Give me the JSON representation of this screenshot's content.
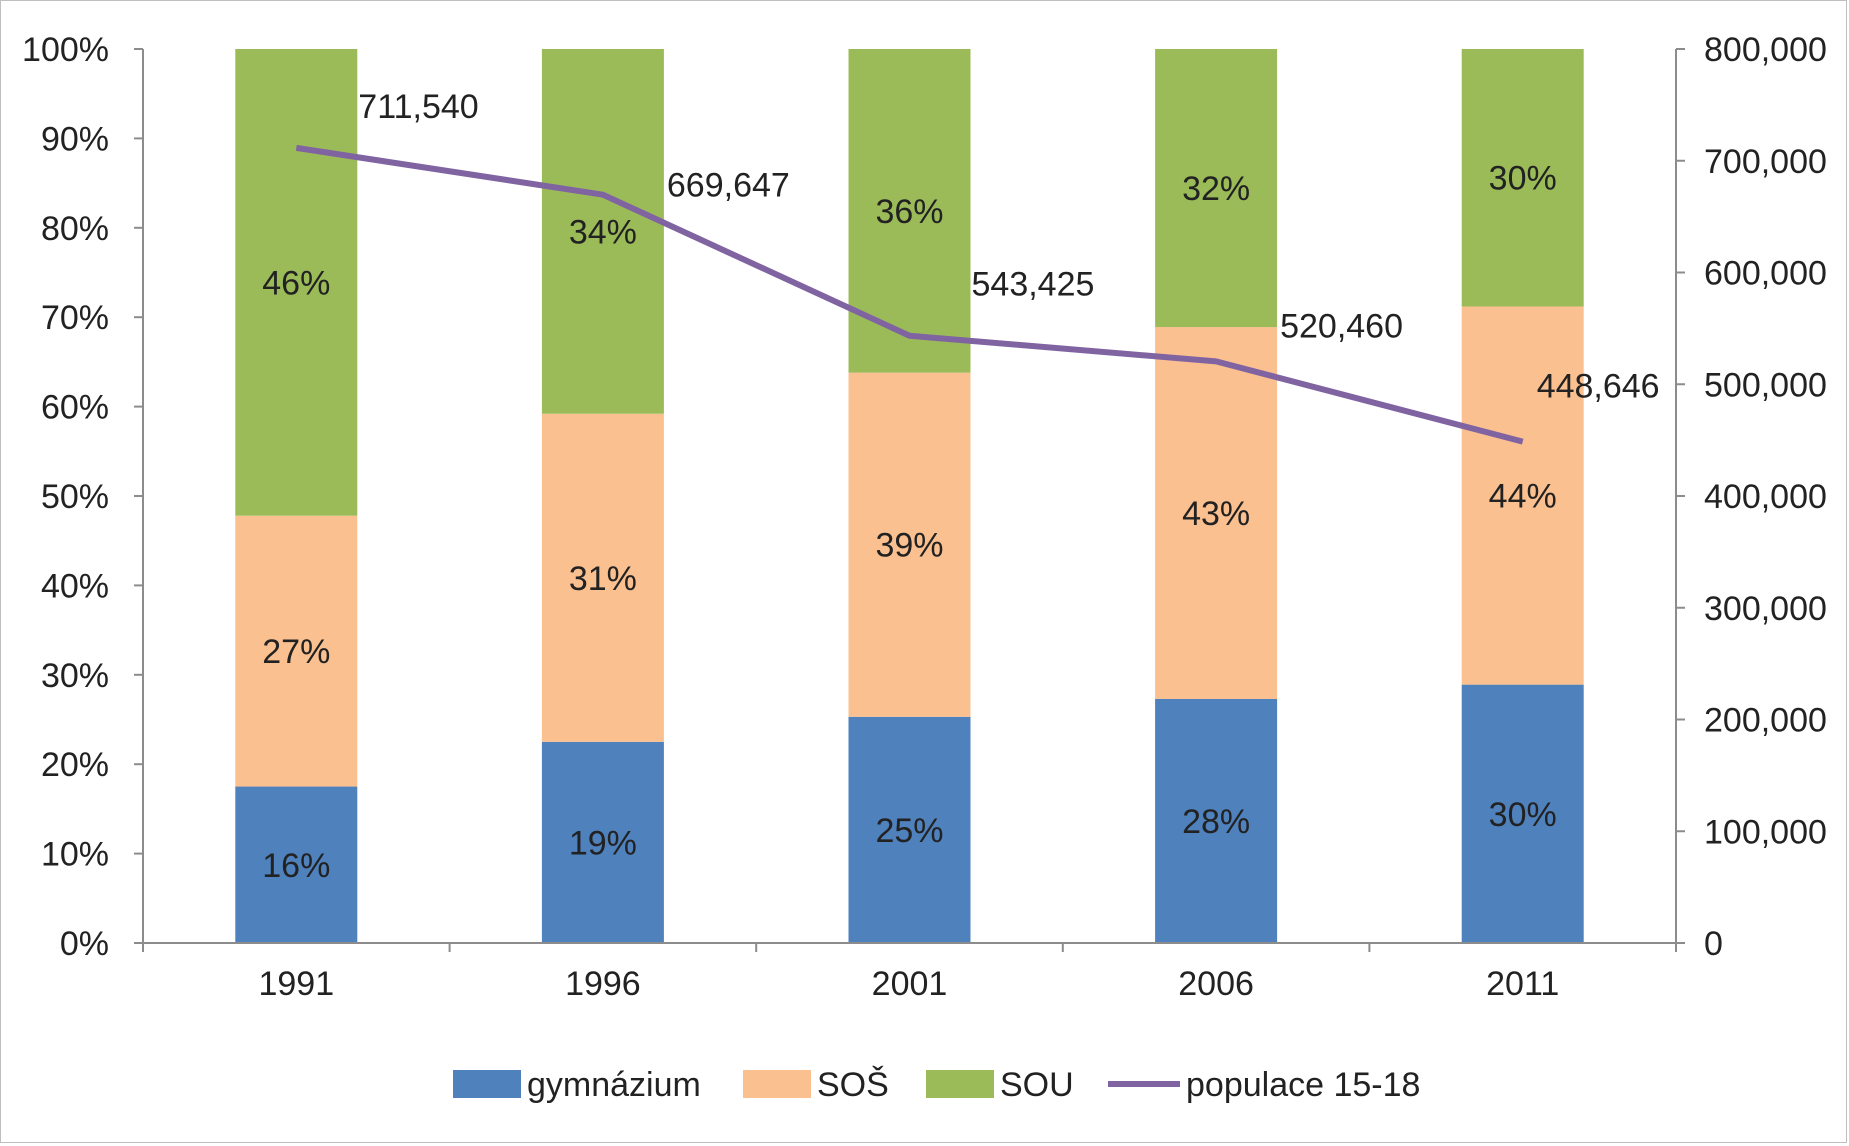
{
  "chart_data": {
    "type": "bar",
    "stacked": true,
    "percent_stacked": true,
    "categories": [
      "1991",
      "1996",
      "2001",
      "2006",
      "2011"
    ],
    "series": [
      {
        "name": "gymnázium",
        "type": "bar",
        "axis": "left",
        "color": "#4f81bd",
        "values": [
          17.5,
          22.5,
          25.3,
          27.3,
          28.9
        ],
        "labels": [
          "16%",
          "19%",
          "25%",
          "28%",
          "30%"
        ]
      },
      {
        "name": "SOŠ",
        "type": "bar",
        "axis": "left",
        "color": "#fac090",
        "values": [
          30.3,
          36.7,
          38.5,
          41.6,
          42.3
        ],
        "labels": [
          "27%",
          "31%",
          "39%",
          "43%",
          "44%"
        ]
      },
      {
        "name": "SOU",
        "type": "bar",
        "axis": "left",
        "color": "#9bbb59",
        "values": [
          52.2,
          40.8,
          36.2,
          31.1,
          28.8
        ],
        "labels": [
          "46%",
          "34%",
          "36%",
          "32%",
          "30%"
        ]
      },
      {
        "name": "populace 15-18",
        "type": "line",
        "axis": "right",
        "color": "#8064a2",
        "values": [
          711540,
          669647,
          543425,
          520460,
          448646
        ],
        "labels": [
          "711,540",
          "669,647",
          "543,425",
          "520,460",
          "448,646"
        ]
      }
    ],
    "y_left": {
      "range": [
        0,
        100
      ],
      "ticks": [
        0,
        10,
        20,
        30,
        40,
        50,
        60,
        70,
        80,
        90,
        100
      ],
      "tick_labels": [
        "0%",
        "10%",
        "20%",
        "30%",
        "40%",
        "50%",
        "60%",
        "70%",
        "80%",
        "90%",
        "100%"
      ]
    },
    "y_right": {
      "range": [
        0,
        800000
      ],
      "ticks": [
        0,
        100000,
        200000,
        300000,
        400000,
        500000,
        600000,
        700000,
        800000
      ],
      "tick_labels": [
        "0",
        "100,000",
        "200,000",
        "300,000",
        "400,000",
        "500,000",
        "600,000",
        "700,000",
        "800,000"
      ]
    },
    "grid": false,
    "legend": "bottom",
    "title": "",
    "xlabel": "",
    "ylabel": ""
  }
}
